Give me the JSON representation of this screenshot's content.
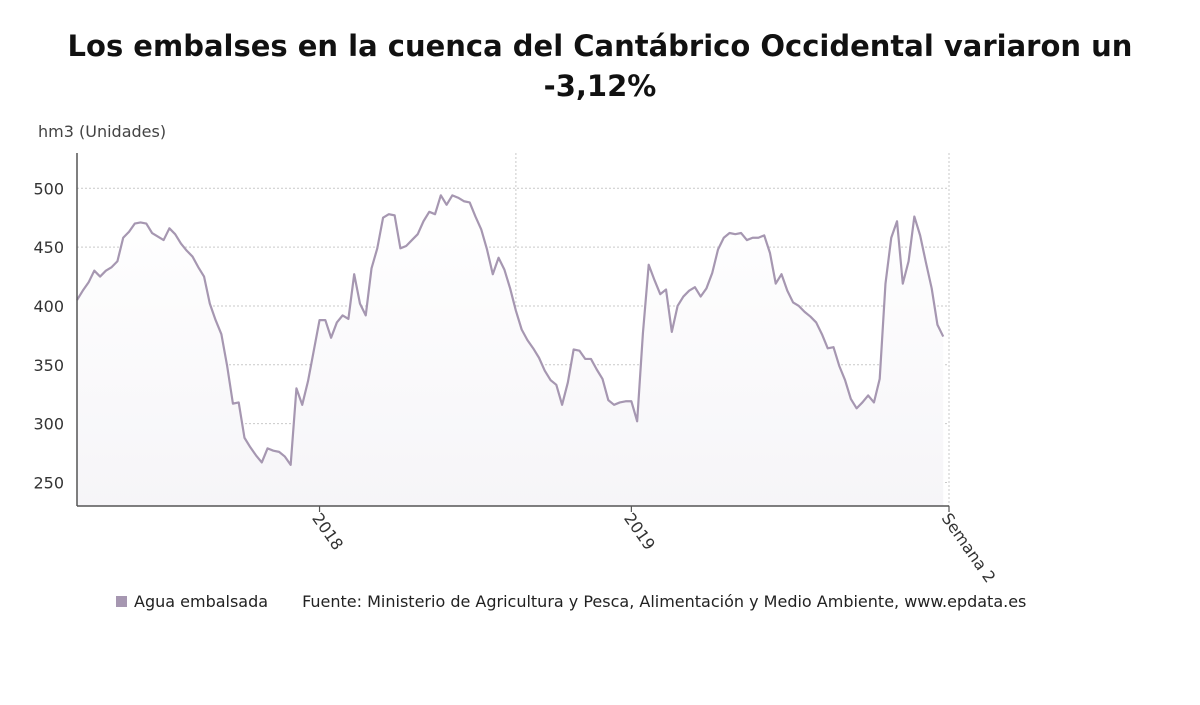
{
  "title_line1": "Los embalses en la cuenca del Cantábrico Occidental variaron un",
  "title_line2": "-3,12%",
  "unit_label": "hm3 (Unidades)",
  "legend_label": "Agua embalsada",
  "source": "Fuente: Ministerio de Agricultura y Pesca, Alimentación y Medio Ambiente, www.epdata.es",
  "colors": {
    "line": "#a697b1",
    "area": "#f6f5f8",
    "grid": "#c9c9c9",
    "axis": "#555555"
  },
  "chart_data": {
    "type": "area",
    "title": "Los embalses en la cuenca del Cantábrico Occidental variaron un -3,12%",
    "ylabel": "hm3 (Unidades)",
    "xlabel": "",
    "ylim": [
      230,
      530
    ],
    "yticks": [
      250,
      300,
      350,
      400,
      450,
      500
    ],
    "x_range": [
      0,
      151
    ],
    "xticks": [
      {
        "label": "2018",
        "x": 42
      },
      {
        "label": "2019",
        "x": 96
      },
      {
        "label": "Semana 2",
        "x": 151
      }
    ],
    "vlines": [
      76
    ],
    "grid": true,
    "legend": "bottom-left",
    "series": [
      {
        "name": "Agua embalsada",
        "values": [
          405,
          413,
          420,
          430,
          425,
          430,
          433,
          438,
          458,
          463,
          470,
          471,
          470,
          462,
          459,
          456,
          466,
          461,
          453,
          447,
          442,
          433,
          425,
          402,
          388,
          376,
          349,
          317,
          318,
          288,
          280,
          273,
          267,
          279,
          277,
          276,
          272,
          265,
          330,
          316,
          336,
          362,
          388,
          388,
          373,
          386,
          392,
          389,
          427,
          402,
          392,
          432,
          449,
          475,
          478,
          477,
          449,
          451,
          456,
          461,
          472,
          480,
          478,
          494,
          486,
          494,
          492,
          489,
          488,
          476,
          465,
          448,
          427,
          441,
          431,
          415,
          396,
          380,
          371,
          364,
          356,
          345,
          337,
          333,
          316,
          335,
          363,
          362,
          355,
          355,
          346,
          338,
          320,
          316,
          318,
          319,
          319,
          302,
          377,
          435,
          422,
          410,
          414,
          378,
          400,
          408,
          413,
          416,
          408,
          415,
          428,
          448,
          458,
          462,
          461,
          462,
          456,
          458,
          458,
          460,
          445,
          419,
          427,
          413,
          403,
          400,
          395,
          391,
          386,
          376,
          364,
          365,
          349,
          337,
          321,
          313,
          318,
          324,
          318,
          338,
          419,
          458,
          472,
          419,
          438,
          476,
          460,
          437,
          415,
          384,
          374
        ]
      }
    ]
  }
}
